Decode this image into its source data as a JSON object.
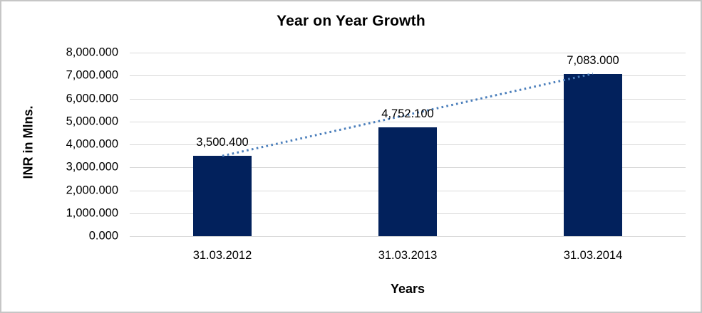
{
  "frame": {
    "background": "#ffffff",
    "border_color": "#c6c6c6"
  },
  "chart_data": {
    "type": "bar",
    "title": "Year on Year Growth",
    "xlabel": "Years",
    "ylabel": "INR in Mlns.",
    "categories": [
      "31.03.2012",
      "31.03.2013",
      "31.03.2014"
    ],
    "values": [
      3500.4,
      4752.1,
      7083.0
    ],
    "data_labels": [
      "3,500.400",
      "4,752.100",
      "7,083.000"
    ],
    "y_ticks": [
      "0.000",
      "1,000.000",
      "2,000.000",
      "3,000.000",
      "4,000.000",
      "5,000.000",
      "6,000.000",
      "7,000.000",
      "8,000.000"
    ],
    "ylim": [
      0,
      8000
    ],
    "y_step": 1000,
    "grid": true,
    "legend": "none",
    "bar_color": "#02215c",
    "gridline_color": "#d9d9d9",
    "trendline": {
      "style": "dotted",
      "color": "#4a7ebb",
      "from_category_index": 0,
      "to_category_index": 2,
      "from_value": 3500.4,
      "to_value": 7083.0
    }
  }
}
